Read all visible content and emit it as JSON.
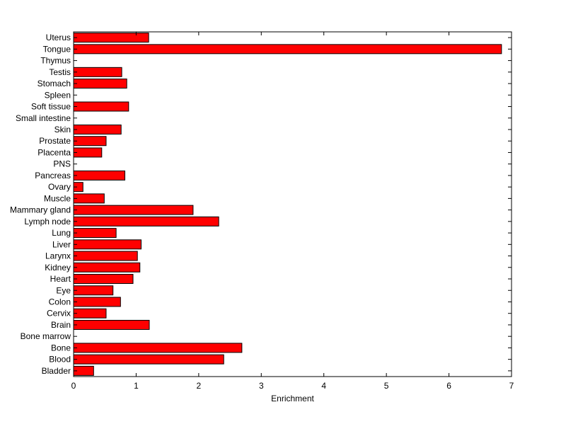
{
  "chart_data": {
    "type": "bar",
    "orientation": "horizontal",
    "categories": [
      "Uterus",
      "Tongue",
      "Thymus",
      "Testis",
      "Stomach",
      "Spleen",
      "Soft tissue",
      "Small intestine",
      "Skin",
      "Prostate",
      "Placenta",
      "PNS",
      "Pancreas",
      "Ovary",
      "Muscle",
      "Mammary gland",
      "Lymph node",
      "Lung",
      "Liver",
      "Larynx",
      "Kidney",
      "Heart",
      "Eye",
      "Colon",
      "Cervix",
      "Brain",
      "Bone marrow",
      "Bone",
      "Blood",
      "Bladder"
    ],
    "values": [
      1.2,
      6.84,
      0,
      0.77,
      0.85,
      0,
      0.88,
      0,
      0.76,
      0.52,
      0.45,
      0,
      0.82,
      0.15,
      0.49,
      1.91,
      2.32,
      0.68,
      1.08,
      1.02,
      1.06,
      0.95,
      0.63,
      0.75,
      0.52,
      1.21,
      0,
      2.69,
      2.4,
      0.32
    ],
    "title": "",
    "xlabel": "Enrichment",
    "ylabel": "",
    "xlim": [
      0,
      7
    ],
    "xticks": [
      0,
      1,
      2,
      3,
      4,
      5,
      6,
      7
    ],
    "grid": false,
    "bar_color": "#ff0000",
    "edge_color": "#000000"
  }
}
